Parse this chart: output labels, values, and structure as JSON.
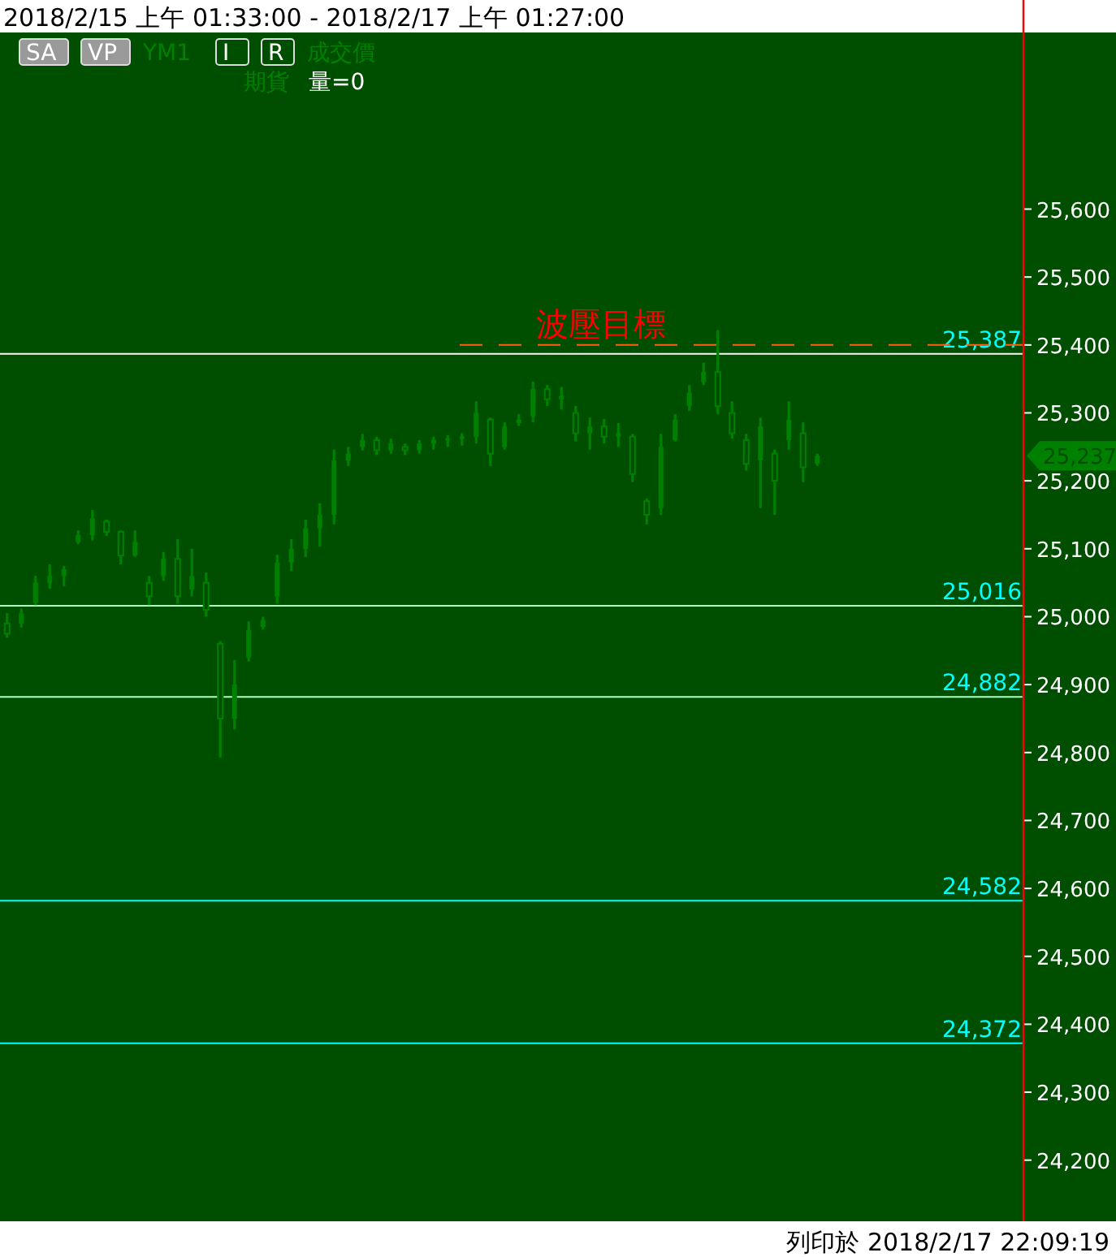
{
  "chart_data": {
    "type": "candlestick",
    "title": "2018/2/15 上午 01:33:00 - 2018/2/17 上午 01:27:00",
    "categories": [
      null,
      null,
      null,
      null,
      null,
      null,
      null,
      null,
      null,
      null,
      null,
      null,
      null,
      null,
      null,
      null,
      null,
      null,
      null,
      null,
      null,
      null,
      null,
      null,
      null,
      null,
      null,
      null,
      null,
      null,
      null,
      null,
      null,
      null,
      null,
      null,
      null,
      null,
      null,
      null,
      null,
      null,
      null,
      null,
      null,
      null,
      null,
      null,
      null,
      null,
      null,
      null,
      null,
      null,
      null,
      null,
      null,
      null,
      null,
      null,
      null,
      null,
      null,
      null,
      null,
      null,
      null,
      null,
      null,
      null,
      null,
      null
    ],
    "ohlc": [
      [
        24990,
        25005,
        24969,
        24975
      ],
      [
        24990,
        25012,
        24984,
        25005
      ],
      [
        25020,
        25060,
        25017,
        25050
      ],
      [
        25050,
        25077,
        25041,
        25060
      ],
      [
        25060,
        25075,
        25045,
        25070
      ],
      [
        25110,
        25127,
        25107,
        25120
      ],
      [
        25120,
        25157,
        25112,
        25145
      ],
      [
        25140,
        25143,
        25119,
        25125
      ],
      [
        25125,
        25127,
        25077,
        25090
      ],
      [
        25090,
        25127,
        25088,
        25110
      ],
      [
        25050,
        25060,
        25017,
        25030
      ],
      [
        25060,
        25095,
        25053,
        25085
      ],
      [
        25085,
        25114,
        25019,
        25030
      ],
      [
        25040,
        25100,
        25030,
        25060
      ],
      [
        25050,
        25065,
        25000,
        25010
      ],
      [
        24960,
        24964,
        24793,
        24850
      ],
      [
        24850,
        24936,
        24834,
        24900
      ],
      [
        24940,
        24993,
        24934,
        24980
      ],
      [
        24985,
        25000,
        24981,
        24995
      ],
      [
        25030,
        25091,
        25019,
        25080
      ],
      [
        25080,
        25114,
        25067,
        25100
      ],
      [
        25100,
        25143,
        25088,
        25130
      ],
      [
        25130,
        25167,
        25103,
        25150
      ],
      [
        25150,
        25246,
        25136,
        25230
      ],
      [
        25230,
        25250,
        25222,
        25240
      ],
      [
        25250,
        25269,
        25245,
        25260
      ],
      [
        25260,
        25265,
        25238,
        25245
      ],
      [
        25245,
        25262,
        25240,
        25255
      ],
      [
        25250,
        25255,
        25238,
        25245
      ],
      [
        25245,
        25260,
        25240,
        25255
      ],
      [
        25255,
        25265,
        25246,
        25260
      ],
      [
        25260,
        25267,
        25250,
        25262
      ],
      [
        25262,
        25270,
        25252,
        25265
      ],
      [
        25265,
        25317,
        25255,
        25300
      ],
      [
        25290,
        25293,
        25222,
        25240
      ],
      [
        25250,
        25286,
        25246,
        25280
      ],
      [
        25285,
        25298,
        25281,
        25290
      ],
      [
        25295,
        25346,
        25286,
        25335
      ],
      [
        25335,
        25341,
        25310,
        25320
      ],
      [
        25320,
        25338,
        25305,
        25325
      ],
      [
        25300,
        25310,
        25258,
        25270
      ],
      [
        25270,
        25293,
        25246,
        25280
      ],
      [
        25280,
        25291,
        25255,
        25265
      ],
      [
        25265,
        25285,
        25250,
        25270
      ],
      [
        25265,
        25269,
        25198,
        25210
      ],
      [
        25170,
        25174,
        25136,
        25150
      ],
      [
        25160,
        25269,
        25150,
        25250
      ],
      [
        25260,
        25298,
        25258,
        25290
      ],
      [
        25310,
        25341,
        25303,
        25330
      ],
      [
        25345,
        25374,
        25341,
        25360
      ],
      [
        25360,
        25422,
        25298,
        25310
      ],
      [
        25300,
        25317,
        25262,
        25270
      ],
      [
        25260,
        25269,
        25215,
        25225
      ],
      [
        25230,
        25293,
        25160,
        25280
      ],
      [
        25240,
        25246,
        25150,
        25200
      ],
      [
        25260,
        25317,
        25246,
        25290
      ],
      [
        25270,
        25286,
        25198,
        25220
      ],
      [
        25225,
        25240,
        25222,
        25237
      ],
      null,
      null,
      null,
      null,
      null,
      null,
      null,
      null,
      null,
      null,
      null,
      null,
      null,
      null
    ],
    "color": "#008000",
    "ylim": [
      24110,
      25860
    ],
    "yticks": [
      {
        "value": 24200,
        "label": "24,200"
      },
      {
        "value": 24300,
        "label": "24,300"
      },
      {
        "value": 24400,
        "label": "24,400"
      },
      {
        "value": 24500,
        "label": "24,500"
      },
      {
        "value": 24600,
        "label": "24,600"
      },
      {
        "value": 24700,
        "label": "24,700"
      },
      {
        "value": 24800,
        "label": "24,800"
      },
      {
        "value": 24900,
        "label": "24,900"
      },
      {
        "value": 25000,
        "label": "25,000"
      },
      {
        "value": 25100,
        "label": "25,100"
      },
      {
        "value": 25200,
        "label": "25,200"
      },
      {
        "value": 25300,
        "label": "25,300"
      },
      {
        "value": 25400,
        "label": "25,400"
      },
      {
        "value": 25500,
        "label": "25,500"
      },
      {
        "value": 25600,
        "label": "25,600"
      }
    ],
    "ref_lines": [
      {
        "axis": "y",
        "value": 25387,
        "label": "25,387",
        "color": "#ffffff",
        "line_style": "solid"
      },
      {
        "axis": "y",
        "value": 25400,
        "label": "波壓目標",
        "color": "#ff6010",
        "line_style": "dashed"
      },
      {
        "axis": "y",
        "value": 25016,
        "label": "25,016",
        "color": "#a8ffc0",
        "line_style": "solid"
      },
      {
        "axis": "y",
        "value": 24882,
        "label": "24,882",
        "color": "#a8ffc0",
        "line_style": "solid"
      },
      {
        "axis": "y",
        "value": 24582,
        "label": "24,582",
        "color": "#00ffff",
        "line_style": "solid"
      },
      {
        "axis": "y",
        "value": 24372,
        "label": "24,372",
        "color": "#00ffff",
        "line_style": "solid"
      }
    ],
    "annotations": [
      "25,237",
      "SA",
      "VP",
      "YM1",
      "I",
      "R",
      "成交價",
      "期貨",
      "量=0",
      "列印於 2018/2/17 22:09:19"
    ],
    "grid": false
  }
}
